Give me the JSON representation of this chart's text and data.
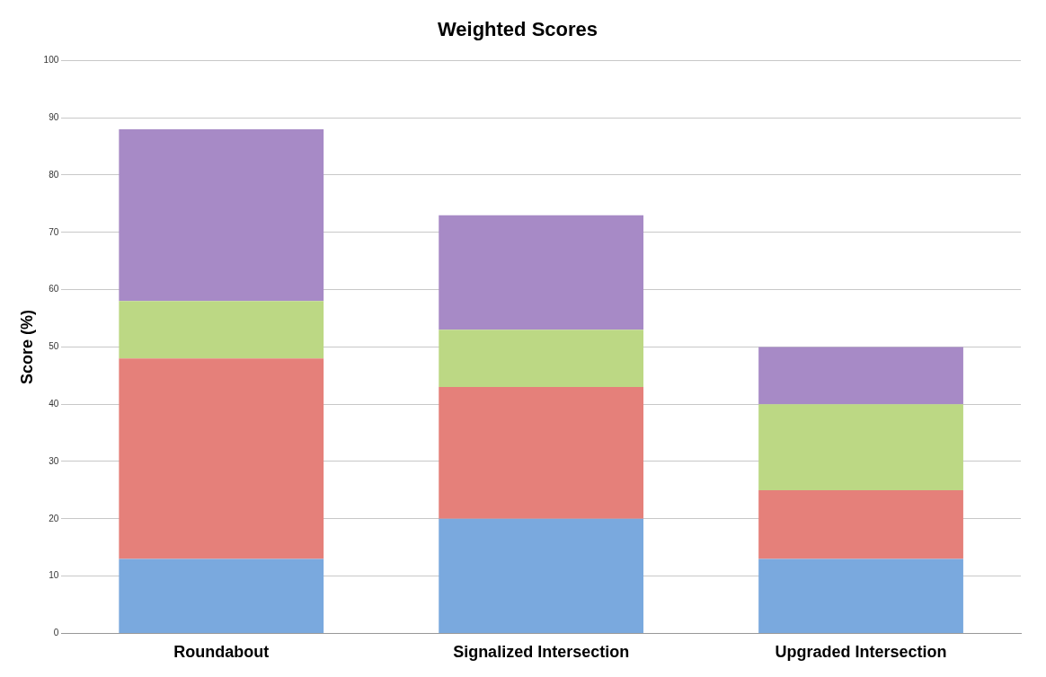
{
  "chart_data": {
    "type": "bar",
    "title": "Weighted Scores",
    "ylabel": "Score (%)",
    "categories": [
      "Roundabout",
      "Signalized Intersection",
      "Upgraded Intersection"
    ],
    "stacked": true,
    "series": [
      {
        "color": "#7aa9de",
        "values": [
          13,
          20,
          13
        ]
      },
      {
        "color": "#e5807a",
        "values": [
          35,
          23,
          12
        ]
      },
      {
        "color": "#bcd884",
        "values": [
          10,
          10,
          15
        ]
      },
      {
        "color": "#a78ac6",
        "values": [
          30,
          20,
          10
        ]
      }
    ],
    "ylim": [
      0,
      100
    ],
    "yticks": [
      0,
      10,
      20,
      30,
      40,
      50,
      60,
      70,
      80,
      90,
      100
    ],
    "grid": "y",
    "legend": false
  }
}
